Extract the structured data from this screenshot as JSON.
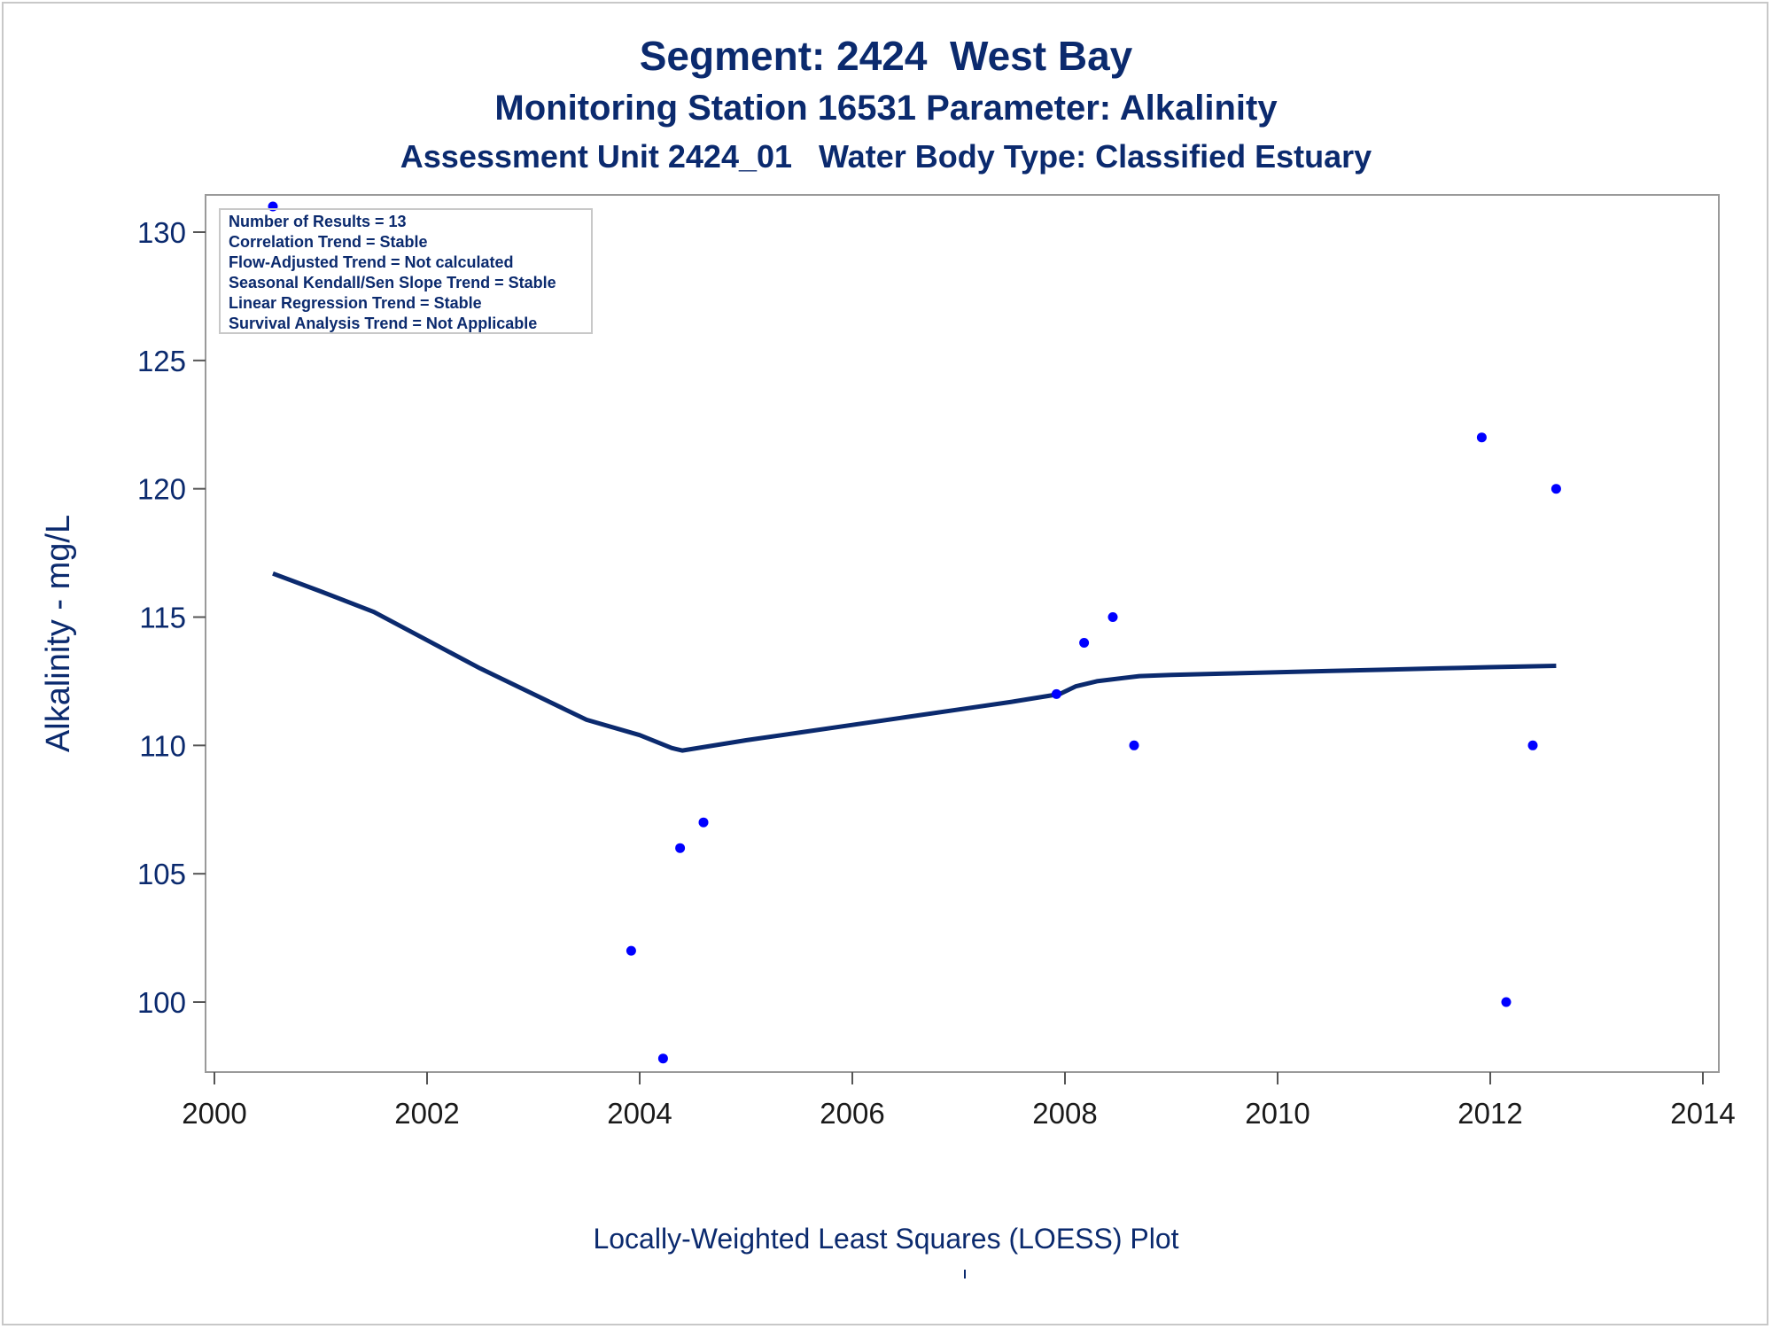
{
  "chart_data": {
    "type": "scatter",
    "title": "Segment: 2424  West Bay",
    "subtitle": "Monitoring Station 16531 Parameter: Alkalinity",
    "subtitle2": "Assessment Unit 2424_01   Water Body Type: Classified Estuary",
    "xlabel": "",
    "ylabel": "Alkalinity - mg/L",
    "footnote": "Locally-Weighted Least Squares (LOESS) Plot",
    "footnote2": "'",
    "xlim": [
      2000,
      2014
    ],
    "ylim": [
      98,
      131.5
    ],
    "x_ticks": [
      "2000",
      "2002",
      "2004",
      "2006",
      "2008",
      "2010",
      "2012",
      "2014"
    ],
    "y_ticks": [
      "100",
      "105",
      "110",
      "115",
      "120",
      "125",
      "130"
    ],
    "grid": false,
    "legend_box": [
      "Number of Results = 13",
      "Correlation Trend = Stable",
      "Flow-Adjusted Trend = Not calculated",
      "Seasonal Kendall/Sen Slope Trend = Stable",
      "Linear Regression Trend = Stable",
      "Survival Analysis Trend = Not Applicable"
    ],
    "series": [
      {
        "type": "scatter",
        "color": "#0000ff",
        "points": [
          [
            2000.55,
            131
          ],
          [
            2003.92,
            102
          ],
          [
            2004.22,
            97.8
          ],
          [
            2004.38,
            106
          ],
          [
            2004.6,
            107
          ],
          [
            2007.92,
            112
          ],
          [
            2008.18,
            114
          ],
          [
            2008.45,
            115
          ],
          [
            2008.65,
            110
          ],
          [
            2011.92,
            122
          ],
          [
            2012.15,
            100
          ],
          [
            2012.4,
            110
          ],
          [
            2012.62,
            120
          ]
        ]
      },
      {
        "type": "line",
        "color": "#0b2a6e",
        "points": [
          [
            2000.55,
            116.7
          ],
          [
            2001.0,
            116.0
          ],
          [
            2001.5,
            115.2
          ],
          [
            2002.0,
            114.1
          ],
          [
            2002.5,
            113.0
          ],
          [
            2003.0,
            112.0
          ],
          [
            2003.5,
            111.0
          ],
          [
            2004.0,
            110.4
          ],
          [
            2004.3,
            109.9
          ],
          [
            2004.4,
            109.8
          ],
          [
            2005.0,
            110.2
          ],
          [
            2005.5,
            110.5
          ],
          [
            2006.0,
            110.8
          ],
          [
            2006.5,
            111.1
          ],
          [
            2007.0,
            111.4
          ],
          [
            2007.5,
            111.7
          ],
          [
            2007.95,
            112.0
          ],
          [
            2008.1,
            112.3
          ],
          [
            2008.3,
            112.5
          ],
          [
            2008.7,
            112.7
          ],
          [
            2009.0,
            112.75
          ],
          [
            2009.5,
            112.8
          ],
          [
            2010.0,
            112.85
          ],
          [
            2010.5,
            112.9
          ],
          [
            2011.0,
            112.95
          ],
          [
            2011.5,
            113.0
          ],
          [
            2012.0,
            113.05
          ],
          [
            2012.62,
            113.1
          ]
        ]
      }
    ]
  }
}
